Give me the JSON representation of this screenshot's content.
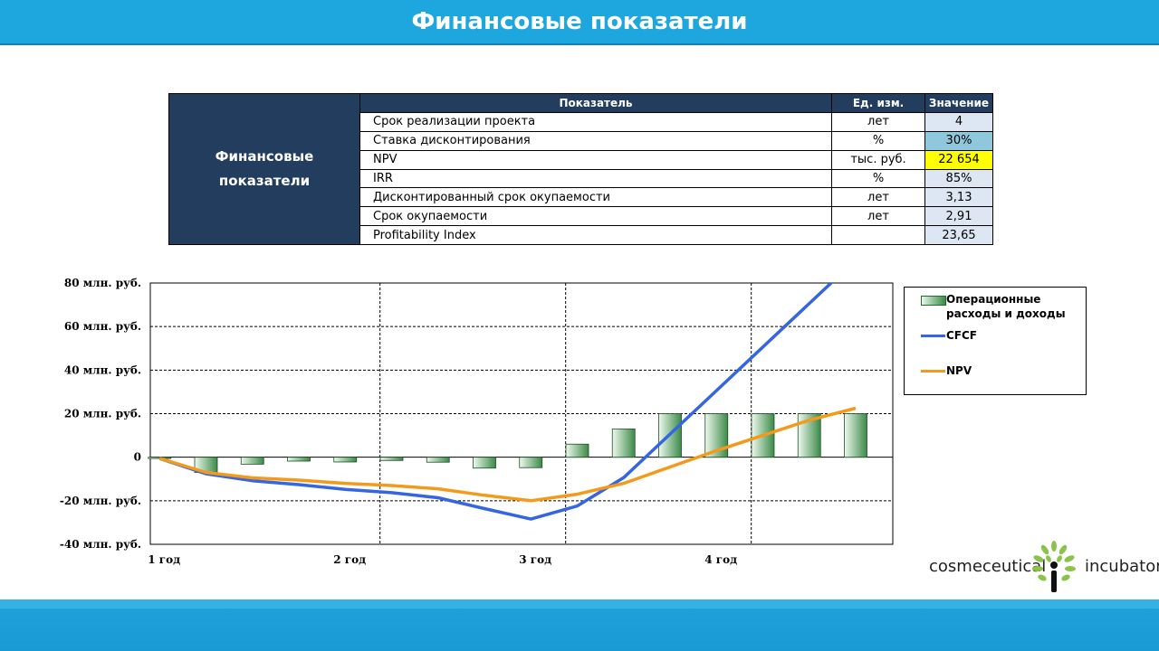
{
  "header": {
    "title": "Финансовые показатели"
  },
  "table": {
    "side_label": [
      "Финансовые",
      "показатели"
    ],
    "headers": [
      "Показатель",
      "Ед. изм.",
      "Значение"
    ],
    "rows": [
      {
        "name": "Срок реализации проекта",
        "unit": "лет",
        "value": "4"
      },
      {
        "name": "Ставка дисконтирования",
        "unit": "%",
        "value": "30%"
      },
      {
        "name": "NPV",
        "unit": "тыс. руб.",
        "value": "22 654"
      },
      {
        "name": "IRR",
        "unit": "%",
        "value": "85%"
      },
      {
        "name": "Дисконтированный срок окупаемости",
        "unit": "лет",
        "value": "3,13"
      },
      {
        "name": "Срок окупаемости",
        "unit": "лет",
        "value": "2,91"
      },
      {
        "name": "Profitability Index",
        "unit": "",
        "value": "23,65"
      }
    ],
    "colors": {
      "header_bg": "#233d5e",
      "value_bg": "#dde7f3",
      "discount_bg": "#8fc8dc",
      "npv_bg": "#ffff00"
    }
  },
  "chart_data": {
    "type": "bar",
    "x": [
      1,
      1.25,
      1.5,
      1.75,
      2,
      2.25,
      2.5,
      2.75,
      3,
      3.25,
      3.5,
      3.75,
      4,
      4.25,
      4.5,
      4.75
    ],
    "x_ticks": [
      {
        "x": 1,
        "label": "1 год"
      },
      {
        "x": 2,
        "label": "2 год"
      },
      {
        "x": 3,
        "label": "3 год"
      },
      {
        "x": 4,
        "label": "4 год"
      }
    ],
    "xlim": [
      0.95,
      4.95
    ],
    "ylim": [
      -40,
      80
    ],
    "y_ticks": [
      {
        "v": 80,
        "label": "80 млн. руб."
      },
      {
        "v": 60,
        "label": "60 млн. руб."
      },
      {
        "v": 40,
        "label": "40 млн. руб."
      },
      {
        "v": 20,
        "label": "20 млн. руб."
      },
      {
        "v": 0,
        "label": "0"
      },
      {
        "v": -20,
        "label": "-20 млн. руб."
      },
      {
        "v": -40,
        "label": "-40 млн. руб."
      }
    ],
    "grid": true,
    "legend_position": "right",
    "series": [
      {
        "name": "Операционные расходы и доходы",
        "kind": "bar",
        "color": "#3b8a47",
        "values": [
          -0.6,
          -7,
          -3.2,
          -1.8,
          -2.2,
          -1.5,
          -2.3,
          -5,
          -4.8,
          6,
          13,
          20,
          20,
          20,
          20,
          20
        ]
      },
      {
        "name": "CFCF",
        "kind": "line",
        "color": "#3565e0",
        "values": [
          -0.6,
          -7.6,
          -10.8,
          -12.6,
          -14.8,
          -16.3,
          -18.6,
          -23.6,
          -28.4,
          -22.4,
          -9.4,
          10.6,
          30.6,
          50.6,
          70.6,
          90.6
        ]
      },
      {
        "name": "NPV",
        "kind": "line",
        "color": "#f39a1a",
        "values": [
          -0.5,
          -7,
          -9.5,
          -10.5,
          -12,
          -13,
          -14.5,
          -17.5,
          -20,
          -17,
          -12,
          -4.5,
          3,
          10,
          17,
          22.5
        ]
      }
    ]
  },
  "logo": {
    "left_word": "cosmeceutical",
    "right_word": "incubator",
    "colors": {
      "leaf": "#8bc34a",
      "stem": "#111111"
    }
  }
}
